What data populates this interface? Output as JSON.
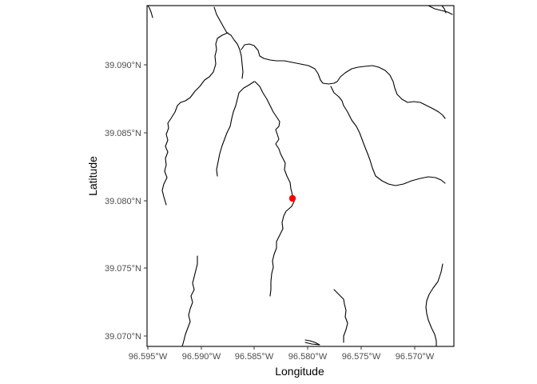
{
  "map": {
    "x_axis_title": "Longitude",
    "y_axis_title": "Latitude",
    "x_ticks": [
      "96.595°W",
      "96.590°W",
      "96.585°W",
      "96.580°W",
      "96.575°W",
      "96.570°W"
    ],
    "y_ticks": [
      "39.090°N",
      "39.085°N",
      "39.080°N",
      "39.075°N",
      "39.070°N"
    ],
    "stream_line_color": "#000000",
    "marker": {
      "longitude": -96.582,
      "latitude": 39.0801,
      "color": "#ff0000"
    },
    "panel_border_color": "#000000",
    "background_color": "#ffffff"
  }
}
